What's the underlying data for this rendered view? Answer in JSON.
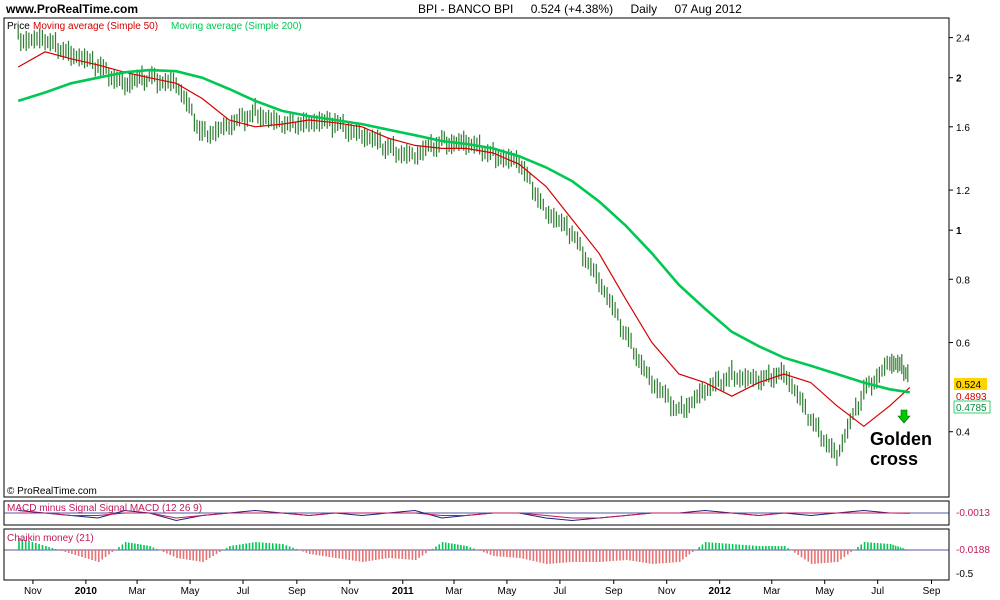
{
  "header": {
    "site": "www.ProRealTime.com",
    "symbol": "BPI - BANCO BPI",
    "quote": "0.524 (+4.38%)",
    "period": "Daily",
    "date": "07 Aug 2012"
  },
  "price_panel": {
    "legend_price": "Price",
    "legend_ma50": "Moving average (Simple 50)",
    "legend_ma200": "Moving average (Simple 200)",
    "copyright": "© ProRealTime.com",
    "annotation_line1": "Golden",
    "annotation_line2": "cross",
    "last_price_label": "0.524",
    "ma50_label": "0.4893",
    "ma200_label": "0.4785"
  },
  "macd_panel": {
    "title": "MACD minus Signal Signal MACD (12 26 9)",
    "value_label": "-0.0013"
  },
  "chaikin_panel": {
    "title": "Chaikin money (21)",
    "value_label": "-0.0188",
    "tick_label": "-0.5"
  },
  "colors": {
    "price_candles": "#2e7d32",
    "ma50": "#d50000",
    "ma200": "#00c853",
    "macd": "#1a237e",
    "signal": "#c2185b",
    "chaikin_pos": "#00c853",
    "chaikin_neg": "#e57373",
    "last_price_bg": "#ffd400"
  },
  "chart_data": [
    {
      "type": "line",
      "title": "BPI - BANCO BPI",
      "scale": "log",
      "ylim": [
        0.3,
        2.6
      ],
      "y_ticks": [
        0.4,
        0.6,
        0.8,
        1,
        1.2,
        1.6,
        2,
        2.4
      ],
      "x_ticks": [
        "Nov",
        "2010",
        "Mar",
        "May",
        "Jul",
        "Sep",
        "Nov",
        "2011",
        "Mar",
        "May",
        "Jul",
        "Sep",
        "Nov",
        "2012",
        "Mar",
        "May",
        "Jul",
        "Sep"
      ],
      "series": [
        {
          "name": "Price",
          "x": [
            "2009-10-15",
            "2009-11-15",
            "2009-12-15",
            "2010-01-15",
            "2010-02-15",
            "2010-03-15",
            "2010-04-15",
            "2010-05-15",
            "2010-06-15",
            "2010-07-15",
            "2010-08-15",
            "2010-09-15",
            "2010-10-15",
            "2010-11-15",
            "2010-12-15",
            "2011-01-15",
            "2011-02-15",
            "2011-03-15",
            "2011-04-15",
            "2011-05-15",
            "2011-06-15",
            "2011-07-15",
            "2011-08-15",
            "2011-09-15",
            "2011-10-15",
            "2011-11-15",
            "2011-12-15",
            "2012-01-15",
            "2012-02-15",
            "2012-03-15",
            "2012-04-15",
            "2012-05-15",
            "2012-06-15",
            "2012-07-15",
            "2012-08-07"
          ],
          "y": [
            2.4,
            2.35,
            2.25,
            2.1,
            1.95,
            2.0,
            1.95,
            1.55,
            1.6,
            1.72,
            1.6,
            1.65,
            1.62,
            1.55,
            1.45,
            1.4,
            1.5,
            1.48,
            1.42,
            1.35,
            1.1,
            0.98,
            0.8,
            0.62,
            0.5,
            0.44,
            0.48,
            0.52,
            0.5,
            0.53,
            0.42,
            0.36,
            0.48,
            0.55,
            0.524
          ]
        },
        {
          "name": "Moving average (Simple 50)",
          "x": [
            "2009-10-15",
            "2009-11-15",
            "2009-12-15",
            "2010-01-15",
            "2010-02-15",
            "2010-03-15",
            "2010-04-15",
            "2010-05-15",
            "2010-06-15",
            "2010-07-15",
            "2010-08-15",
            "2010-09-15",
            "2010-10-15",
            "2010-11-15",
            "2010-12-15",
            "2011-01-15",
            "2011-02-15",
            "2011-03-15",
            "2011-04-15",
            "2011-05-15",
            "2011-06-15",
            "2011-07-15",
            "2011-08-15",
            "2011-09-15",
            "2011-10-15",
            "2011-11-15",
            "2011-12-15",
            "2012-01-15",
            "2012-02-15",
            "2012-03-15",
            "2012-04-15",
            "2012-05-15",
            "2012-06-15",
            "2012-07-15",
            "2012-08-07"
          ],
          "y": [
            2.1,
            2.25,
            2.18,
            2.12,
            2.05,
            2.0,
            1.95,
            1.82,
            1.65,
            1.6,
            1.62,
            1.65,
            1.63,
            1.6,
            1.52,
            1.47,
            1.45,
            1.45,
            1.42,
            1.35,
            1.22,
            1.05,
            0.9,
            0.73,
            0.6,
            0.52,
            0.5,
            0.47,
            0.5,
            0.52,
            0.5,
            0.45,
            0.41,
            0.45,
            0.4893
          ]
        },
        {
          "name": "Moving average (Simple 200)",
          "x": [
            "2009-10-15",
            "2009-11-15",
            "2009-12-15",
            "2010-01-15",
            "2010-02-15",
            "2010-03-15",
            "2010-04-15",
            "2010-05-15",
            "2010-06-15",
            "2010-07-15",
            "2010-08-15",
            "2010-09-15",
            "2010-10-15",
            "2010-11-15",
            "2010-12-15",
            "2011-01-15",
            "2011-02-15",
            "2011-03-15",
            "2011-04-15",
            "2011-05-15",
            "2011-06-15",
            "2011-07-15",
            "2011-08-15",
            "2011-09-15",
            "2011-10-15",
            "2011-11-15",
            "2011-12-15",
            "2012-01-15",
            "2012-02-15",
            "2012-03-15",
            "2012-04-15",
            "2012-05-15",
            "2012-06-15",
            "2012-07-15",
            "2012-08-07"
          ],
          "y": [
            1.8,
            1.87,
            1.95,
            2.0,
            2.05,
            2.07,
            2.06,
            2.0,
            1.9,
            1.8,
            1.72,
            1.68,
            1.65,
            1.62,
            1.58,
            1.54,
            1.5,
            1.48,
            1.45,
            1.4,
            1.33,
            1.25,
            1.14,
            1.02,
            0.9,
            0.78,
            0.7,
            0.63,
            0.59,
            0.56,
            0.54,
            0.52,
            0.5,
            0.485,
            0.4785
          ]
        }
      ]
    },
    {
      "type": "line",
      "title": "MACD minus Signal Signal MACD (12 26 9)",
      "series": [
        {
          "name": "MACD",
          "values": [
            0.01,
            0.0,
            -0.01,
            -0.02,
            0.01,
            0.0,
            -0.03,
            -0.01,
            0.0,
            0.01,
            0.0,
            -0.01,
            0.0,
            -0.01,
            0.0,
            0.01,
            -0.02,
            -0.01,
            0.0,
            0.0,
            -0.02,
            -0.03,
            -0.02,
            -0.01,
            0.0,
            0.0,
            0.01,
            0.0,
            -0.01,
            0.0,
            -0.01,
            0.0,
            0.01,
            0.0,
            -0.0013
          ]
        },
        {
          "name": "Signal",
          "values": [
            0.0,
            0.0,
            -0.01,
            -0.01,
            0.0,
            0.0,
            -0.02,
            -0.01,
            0.0,
            0.0,
            0.0,
            -0.01,
            0.0,
            0.0,
            0.0,
            0.0,
            -0.01,
            -0.01,
            0.0,
            0.0,
            -0.01,
            -0.02,
            -0.02,
            -0.01,
            0.0,
            0.0,
            0.0,
            0.0,
            -0.01,
            0.0,
            0.0,
            0.0,
            0.0,
            0.0,
            0.0
          ]
        }
      ]
    },
    {
      "type": "bar",
      "title": "Chaikin money (21)",
      "ylim": [
        -0.5,
        0.5
      ],
      "values": [
        0.3,
        0.1,
        -0.1,
        -0.3,
        0.2,
        0.1,
        -0.2,
        -0.3,
        0.1,
        0.2,
        0.15,
        -0.1,
        -0.2,
        -0.3,
        -0.2,
        -0.25,
        0.2,
        0.1,
        -0.15,
        -0.2,
        -0.35,
        -0.3,
        -0.3,
        -0.25,
        -0.35,
        -0.3,
        0.2,
        0.15,
        0.1,
        0.1,
        -0.35,
        -0.3,
        0.2,
        0.15,
        -0.0188
      ]
    }
  ]
}
